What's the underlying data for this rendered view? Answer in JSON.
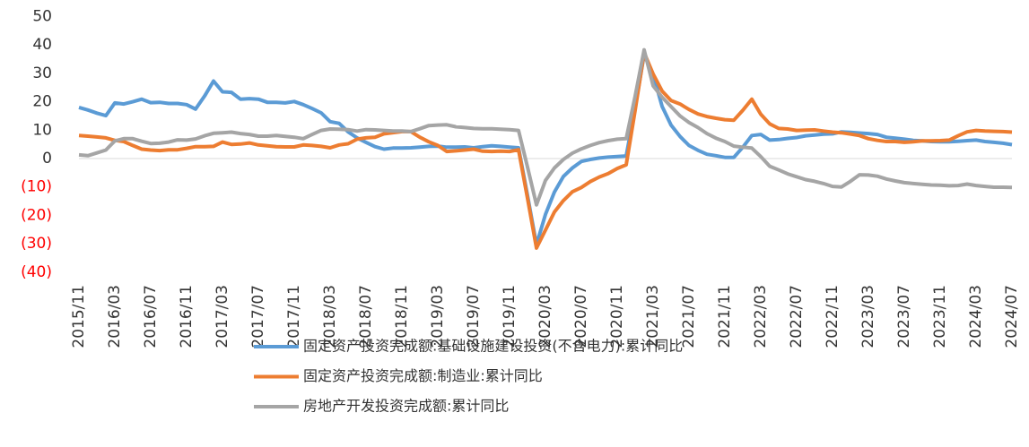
{
  "chart_data": {
    "type": "line",
    "categories": [
      "2015/11",
      null,
      null,
      null,
      "2016/03",
      null,
      null,
      null,
      "2016/07",
      null,
      null,
      null,
      "2016/11",
      null,
      null,
      null,
      "2017/03",
      null,
      null,
      null,
      "2017/07",
      null,
      null,
      null,
      "2017/11",
      null,
      null,
      null,
      "2018/03",
      null,
      null,
      null,
      "2018/07",
      null,
      null,
      null,
      "2018/11",
      null,
      null,
      null,
      "2019/03",
      null,
      null,
      null,
      "2019/07",
      null,
      null,
      null,
      "2019/11",
      null,
      null,
      null,
      "2020/03",
      null,
      null,
      null,
      "2020/07",
      null,
      null,
      null,
      "2020/11",
      null,
      null,
      null,
      "2021/03",
      null,
      null,
      null,
      "2021/07",
      null,
      null,
      null,
      "2021/11",
      null,
      null,
      null,
      "2022/03",
      null,
      null,
      null,
      "2022/07",
      null,
      null,
      null,
      "2022/11",
      null,
      null,
      null,
      "2023/03",
      null,
      null,
      null,
      "2023/07",
      null,
      null,
      null,
      "2023/11",
      null,
      null,
      null,
      "2024/03",
      null,
      null,
      null,
      "2024/07"
    ],
    "series": [
      {
        "name": "固定资产投资完成额:基础设施建设投资(不含电力):累计同比",
        "color": "#5b9bd5",
        "values": [
          18.0,
          17.1,
          16.0,
          15.1,
          19.6,
          19.2,
          20.0,
          20.9,
          19.7,
          19.8,
          19.4,
          19.4,
          19.0,
          17.4,
          22,
          27.3,
          23.5,
          23.3,
          20.9,
          21.1,
          20.9,
          19.8,
          19.8,
          19.6,
          20.1,
          19.0,
          17.6,
          16.1,
          13.0,
          12.4,
          9.4,
          7.3,
          5.7,
          4.2,
          3.3,
          3.7,
          3.7,
          3.8,
          4.0,
          4.3,
          4.4,
          4.0,
          4.0,
          4.1,
          3.8,
          4.2,
          4.5,
          4.3,
          4.0,
          3.8,
          -13,
          -30.3,
          -19.7,
          -11.8,
          -6.3,
          -3.3,
          -1.0,
          -0.3,
          0.2,
          0.5,
          0.7,
          0.9,
          18,
          36.6,
          29.7,
          18.4,
          11.8,
          7.8,
          4.6,
          2.9,
          1.5,
          1.0,
          0.4,
          0.4,
          4,
          8.1,
          8.5,
          6.5,
          6.7,
          7.1,
          7.4,
          8.0,
          8.3,
          8.6,
          8.7,
          9.4,
          9.2,
          9.0,
          8.8,
          8.5,
          7.5,
          7.2,
          6.8,
          6.4,
          6.2,
          6.0,
          5.9,
          5.9,
          6.1,
          6.3,
          6.5,
          6.0,
          5.7,
          5.4,
          4.9
        ]
      },
      {
        "name": "固定资产投资完成额:制造业:累计同比",
        "color": "#ed7d31",
        "values": [
          8.1,
          7.9,
          7.6,
          7.3,
          6.4,
          6.0,
          4.6,
          3.3,
          3.0,
          2.8,
          3.1,
          3.1,
          3.6,
          4.2,
          4.2,
          4.3,
          5.8,
          5.0,
          5.1,
          5.5,
          4.8,
          4.5,
          4.2,
          4.1,
          4.1,
          4.8,
          4.6,
          4.3,
          3.8,
          4.8,
          5.2,
          6.8,
          7.3,
          7.5,
          8.7,
          9.1,
          9.5,
          9.5,
          7.5,
          5.9,
          4.6,
          2.5,
          2.7,
          3.0,
          3.3,
          2.6,
          2.5,
          2.6,
          2.5,
          3.1,
          -14,
          -31.5,
          -25.2,
          -18.8,
          -14.8,
          -11.7,
          -10.2,
          -8.1,
          -6.5,
          -5.3,
          -3.5,
          -2.2,
          17,
          37.3,
          29.8,
          23.8,
          20.4,
          19.2,
          17.3,
          15.7,
          14.8,
          14.2,
          13.7,
          13.5,
          17,
          20.9,
          15.6,
          12.2,
          10.6,
          10.4,
          9.9,
          10.0,
          10.1,
          9.7,
          9.3,
          9.1,
          8.6,
          8.1,
          7.0,
          6.4,
          6.0,
          6.0,
          5.7,
          5.9,
          6.2,
          6.2,
          6.3,
          6.5,
          8,
          9.4,
          9.9,
          9.7,
          9.6,
          9.5,
          9.3
        ]
      },
      {
        "name": "房地产开发投资完成额:累计同比",
        "color": "#a5a5a5",
        "values": [
          1.3,
          1.0,
          2,
          3.0,
          6.2,
          7.0,
          7.0,
          6.1,
          5.3,
          5.4,
          5.8,
          6.6,
          6.5,
          6.9,
          8,
          8.9,
          9.1,
          9.3,
          8.8,
          8.5,
          7.9,
          7.9,
          8.1,
          7.8,
          7.5,
          7.0,
          8.5,
          9.9,
          10.4,
          10.3,
          10.2,
          9.7,
          10.2,
          10.1,
          9.9,
          9.7,
          9.7,
          9.5,
          10.5,
          11.6,
          11.8,
          11.9,
          11.2,
          10.9,
          10.6,
          10.5,
          10.5,
          10.3,
          10.2,
          9.9,
          -3,
          -16.3,
          -7.7,
          -3.3,
          -0.3,
          1.9,
          3.4,
          4.6,
          5.6,
          6.3,
          6.8,
          7.0,
          22,
          38.3,
          25.6,
          21.6,
          18.3,
          15.0,
          12.7,
          10.9,
          8.8,
          7.2,
          6.0,
          4.4,
          4,
          3.7,
          0.7,
          -2.7,
          -4.0,
          -5.4,
          -6.4,
          -7.4,
          -8.0,
          -8.8,
          -9.8,
          -10.0,
          -8,
          -5.7,
          -5.8,
          -6.2,
          -7.2,
          -7.9,
          -8.5,
          -8.8,
          -9.1,
          -9.3,
          -9.4,
          -9.6,
          -9.5,
          -9.0,
          -9.5,
          -9.8,
          -10.1,
          -10.1,
          -10.2
        ]
      }
    ],
    "ylim": [
      -40,
      50
    ],
    "yticks": [
      {
        "value": -40,
        "label": "(40)"
      },
      {
        "value": -30,
        "label": "(30)"
      },
      {
        "value": -20,
        "label": "(20)"
      },
      {
        "value": -10,
        "label": "(10)"
      },
      0,
      10,
      20,
      30,
      40,
      50
    ],
    "negative_tick_color": "#ff0000",
    "grid": false,
    "legend": "bottom"
  }
}
